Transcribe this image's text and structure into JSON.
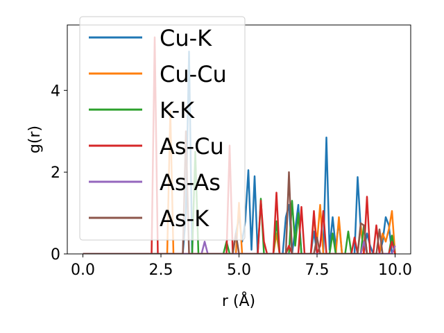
{
  "chart_data": {
    "type": "line",
    "xlabel": "r (Å)",
    "ylabel": "g(r)",
    "xlim": [
      -0.5,
      10.5
    ],
    "ylim": [
      0,
      5.6
    ],
    "xticks": [
      0.0,
      2.5,
      5.0,
      7.5,
      10.0
    ],
    "xtick_labels": [
      "0.0",
      "2.5",
      "5.0",
      "7.5",
      "10.0"
    ],
    "yticks": [
      0,
      2,
      4
    ],
    "ytick_labels": [
      "0",
      "2",
      "4"
    ],
    "legend_position": "upper-left",
    "grid": false,
    "series": [
      {
        "name": "Cu-K",
        "color": "#1f77b4",
        "points": [
          [
            0,
            0
          ],
          [
            3.2,
            0
          ],
          [
            3.3,
            1.0
          ],
          [
            3.4,
            4.95
          ],
          [
            3.5,
            0
          ],
          [
            4.8,
            0
          ],
          [
            4.9,
            0.5
          ],
          [
            5.0,
            0.9
          ],
          [
            5.1,
            0.3
          ],
          [
            5.2,
            0.8
          ],
          [
            5.3,
            2.05
          ],
          [
            5.4,
            0.1
          ],
          [
            5.5,
            1.9
          ],
          [
            5.6,
            0
          ],
          [
            6.4,
            0
          ],
          [
            6.5,
            0.9
          ],
          [
            6.6,
            1.2
          ],
          [
            6.7,
            0
          ],
          [
            6.9,
            1.2
          ],
          [
            7.0,
            0
          ],
          [
            7.3,
            0
          ],
          [
            7.4,
            0.55
          ],
          [
            7.5,
            0
          ],
          [
            7.7,
            0
          ],
          [
            7.8,
            2.85
          ],
          [
            7.9,
            0.1
          ],
          [
            8.0,
            0.9
          ],
          [
            8.1,
            0.15
          ],
          [
            8.2,
            0.8
          ],
          [
            8.3,
            0
          ],
          [
            8.7,
            0
          ],
          [
            8.8,
            1.88
          ],
          [
            8.9,
            0.6
          ],
          [
            9.0,
            0.1
          ],
          [
            9.1,
            0.5
          ],
          [
            9.2,
            0.2
          ],
          [
            9.3,
            0
          ],
          [
            9.5,
            0
          ],
          [
            9.6,
            0.3
          ],
          [
            9.7,
            0.9
          ],
          [
            9.8,
            0.7
          ],
          [
            9.9,
            0
          ]
        ]
      },
      {
        "name": "Cu-Cu",
        "color": "#ff7f0e",
        "points": [
          [
            0,
            0
          ],
          [
            2.7,
            0
          ],
          [
            2.8,
            3.5
          ],
          [
            2.9,
            0
          ],
          [
            4.9,
            0
          ],
          [
            5.0,
            1.25
          ],
          [
            5.1,
            0
          ],
          [
            6.1,
            0
          ],
          [
            6.2,
            0.5
          ],
          [
            6.3,
            0
          ],
          [
            7.3,
            0
          ],
          [
            7.4,
            0.9
          ],
          [
            7.5,
            0.3
          ],
          [
            7.6,
            1.2
          ],
          [
            7.7,
            0
          ],
          [
            8.1,
            0
          ],
          [
            8.2,
            0.9
          ],
          [
            8.3,
            0
          ],
          [
            8.8,
            0
          ],
          [
            8.9,
            0.7
          ],
          [
            9.0,
            0
          ],
          [
            9.5,
            0
          ],
          [
            9.6,
            0.5
          ],
          [
            9.7,
            0.3
          ],
          [
            9.8,
            0.6
          ],
          [
            9.9,
            1.05
          ],
          [
            10.0,
            0
          ]
        ]
      },
      {
        "name": "K-K",
        "color": "#2ca02c",
        "points": [
          [
            0,
            0
          ],
          [
            3.5,
            0
          ],
          [
            3.6,
            2.5
          ],
          [
            3.7,
            0
          ],
          [
            4.5,
            0
          ],
          [
            4.6,
            0.3
          ],
          [
            4.7,
            0
          ],
          [
            5.6,
            0
          ],
          [
            5.7,
            1.35
          ],
          [
            5.8,
            0
          ],
          [
            6.1,
            0
          ],
          [
            6.2,
            0.8
          ],
          [
            6.3,
            0
          ],
          [
            6.6,
            0
          ],
          [
            6.7,
            1.3
          ],
          [
            6.8,
            0.2
          ],
          [
            6.9,
            1.0
          ],
          [
            7.0,
            0
          ],
          [
            7.9,
            0
          ],
          [
            8.0,
            0.5
          ],
          [
            8.1,
            0
          ],
          [
            8.4,
            0
          ],
          [
            8.5,
            0.55
          ],
          [
            8.6,
            0
          ],
          [
            8.9,
            0
          ],
          [
            9.0,
            0.7
          ],
          [
            9.1,
            0
          ],
          [
            9.8,
            0
          ],
          [
            9.9,
            0.45
          ],
          [
            10.0,
            0
          ]
        ]
      },
      {
        "name": "As-Cu",
        "color": "#d62728",
        "points": [
          [
            0,
            0
          ],
          [
            2.2,
            0
          ],
          [
            2.3,
            5.3
          ],
          [
            2.4,
            0
          ],
          [
            4.6,
            0
          ],
          [
            4.7,
            2.65
          ],
          [
            4.8,
            0
          ],
          [
            5.6,
            0
          ],
          [
            5.7,
            1.3
          ],
          [
            5.8,
            0.3
          ],
          [
            5.9,
            0
          ],
          [
            6.1,
            0
          ],
          [
            6.2,
            1.5
          ],
          [
            6.3,
            0
          ],
          [
            6.5,
            0
          ],
          [
            6.6,
            0.2
          ],
          [
            6.7,
            0
          ],
          [
            6.9,
            0
          ],
          [
            7.0,
            1.15
          ],
          [
            7.1,
            0
          ],
          [
            7.3,
            0
          ],
          [
            7.4,
            1.05
          ],
          [
            7.5,
            0
          ],
          [
            7.6,
            0.2
          ],
          [
            7.7,
            1.05
          ],
          [
            7.8,
            0
          ],
          [
            8.6,
            0
          ],
          [
            8.7,
            0.4
          ],
          [
            8.8,
            0
          ],
          [
            9.0,
            0
          ],
          [
            9.1,
            1.4
          ],
          [
            9.2,
            0
          ],
          [
            9.3,
            0
          ],
          [
            9.4,
            0.7
          ],
          [
            9.5,
            0
          ],
          [
            9.8,
            0
          ],
          [
            9.9,
            0.3
          ],
          [
            10.0,
            0
          ]
        ]
      },
      {
        "name": "As-As",
        "color": "#9467bd",
        "points": [
          [
            0,
            0
          ],
          [
            3.8,
            0
          ],
          [
            3.9,
            0.3
          ],
          [
            4.0,
            0
          ],
          [
            8.9,
            0
          ],
          [
            9.0,
            0.3
          ],
          [
            9.1,
            0
          ],
          [
            9.9,
            0
          ],
          [
            10.0,
            0.2
          ]
        ]
      },
      {
        "name": "As-K",
        "color": "#8c564b",
        "points": [
          [
            0,
            0
          ],
          [
            3.2,
            0
          ],
          [
            3.3,
            3.0
          ],
          [
            3.4,
            0
          ],
          [
            4.8,
            0
          ],
          [
            4.9,
            0.5
          ],
          [
            5.0,
            0
          ],
          [
            6.5,
            0
          ],
          [
            6.6,
            2.0
          ],
          [
            6.7,
            0
          ],
          [
            7.4,
            0
          ],
          [
            7.5,
            0.4
          ],
          [
            7.6,
            0
          ],
          [
            8.8,
            0
          ],
          [
            8.9,
            0.75
          ],
          [
            9.0,
            0.7
          ],
          [
            9.1,
            0
          ],
          [
            9.4,
            0
          ],
          [
            9.5,
            0.6
          ],
          [
            9.6,
            0
          ]
        ]
      }
    ]
  }
}
